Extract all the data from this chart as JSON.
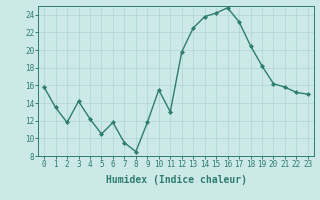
{
  "x": [
    0,
    1,
    2,
    3,
    4,
    5,
    6,
    7,
    8,
    9,
    10,
    11,
    12,
    13,
    14,
    15,
    16,
    17,
    18,
    19,
    20,
    21,
    22,
    23
  ],
  "y": [
    15.8,
    13.5,
    11.8,
    14.2,
    12.2,
    10.5,
    11.8,
    9.5,
    8.5,
    11.8,
    15.5,
    13.0,
    19.8,
    22.5,
    23.8,
    24.2,
    24.8,
    23.2,
    20.5,
    18.2,
    16.2,
    15.8,
    15.2,
    15.0
  ],
  "line_color": "#2d7d6e",
  "marker": "D",
  "marker_size": 2.0,
  "bg_color": "#cce9e8",
  "grid_color": "#b0d8d8",
  "xlabel": "Humidex (Indice chaleur)",
  "ylim": [
    8,
    25
  ],
  "xlim": [
    -0.5,
    23.5
  ],
  "yticks": [
    8,
    10,
    12,
    14,
    16,
    18,
    20,
    22,
    24
  ],
  "xticks": [
    0,
    1,
    2,
    3,
    4,
    5,
    6,
    7,
    8,
    9,
    10,
    11,
    12,
    13,
    14,
    15,
    16,
    17,
    18,
    19,
    20,
    21,
    22,
    23
  ],
  "tick_label_fontsize": 5.5,
  "xlabel_fontsize": 7.0,
  "line_width": 1.0
}
